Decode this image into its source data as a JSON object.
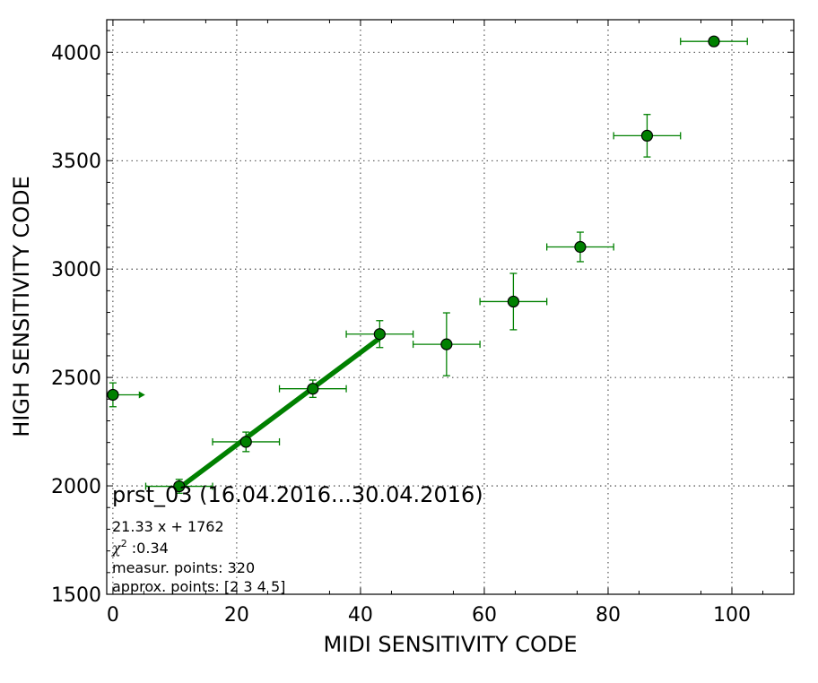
{
  "chart_data": {
    "type": "scatter",
    "xlabel": "MIDI SENSITIVITY CODE",
    "ylabel": "HIGH SENSITIVITY CODE",
    "xlim": [
      -1,
      110
    ],
    "ylim": [
      1500,
      4150
    ],
    "x_ticks": [
      0,
      20,
      40,
      60,
      80,
      100
    ],
    "y_ticks": [
      1500,
      2000,
      2500,
      3000,
      3500,
      4000
    ],
    "grid": true,
    "color": "#008000",
    "points": [
      {
        "x": 0,
        "y": 2420,
        "xerr": 0,
        "yerr": 55,
        "lower_limit_arrow": true
      },
      {
        "x": 10.7,
        "y": 1998,
        "xerr": 5.4,
        "yerr": 32
      },
      {
        "x": 21.5,
        "y": 2203,
        "xerr": 5.4,
        "yerr": 45
      },
      {
        "x": 32.3,
        "y": 2448,
        "xerr": 5.4,
        "yerr": 40
      },
      {
        "x": 43.1,
        "y": 2700,
        "xerr": 5.4,
        "yerr": 62
      },
      {
        "x": 53.9,
        "y": 2653,
        "xerr": 5.4,
        "yerr": 145
      },
      {
        "x": 64.7,
        "y": 2850,
        "xerr": 5.4,
        "yerr": 130
      },
      {
        "x": 75.5,
        "y": 3102,
        "xerr": 5.4,
        "yerr": 68
      },
      {
        "x": 86.3,
        "y": 3615,
        "xerr": 5.4,
        "yerr": 98
      },
      {
        "x": 97.1,
        "y": 4050,
        "xerr": 5.4,
        "yerr": 0
      }
    ],
    "fit_line": {
      "x_start": 10.7,
      "x_end": 43.1,
      "slope": 21.33,
      "intercept": 1762
    }
  },
  "annotation": {
    "title": "prst_03 (16.04.2016...30.04.2016)",
    "equation": "21.33 x + 1762",
    "chi_symbol": "χ",
    "chi_sup": "2",
    "chi_value": " :0.34",
    "measur_points": "measur. points: 320",
    "approx_points": "approx. points: [2 3 4 5]"
  }
}
